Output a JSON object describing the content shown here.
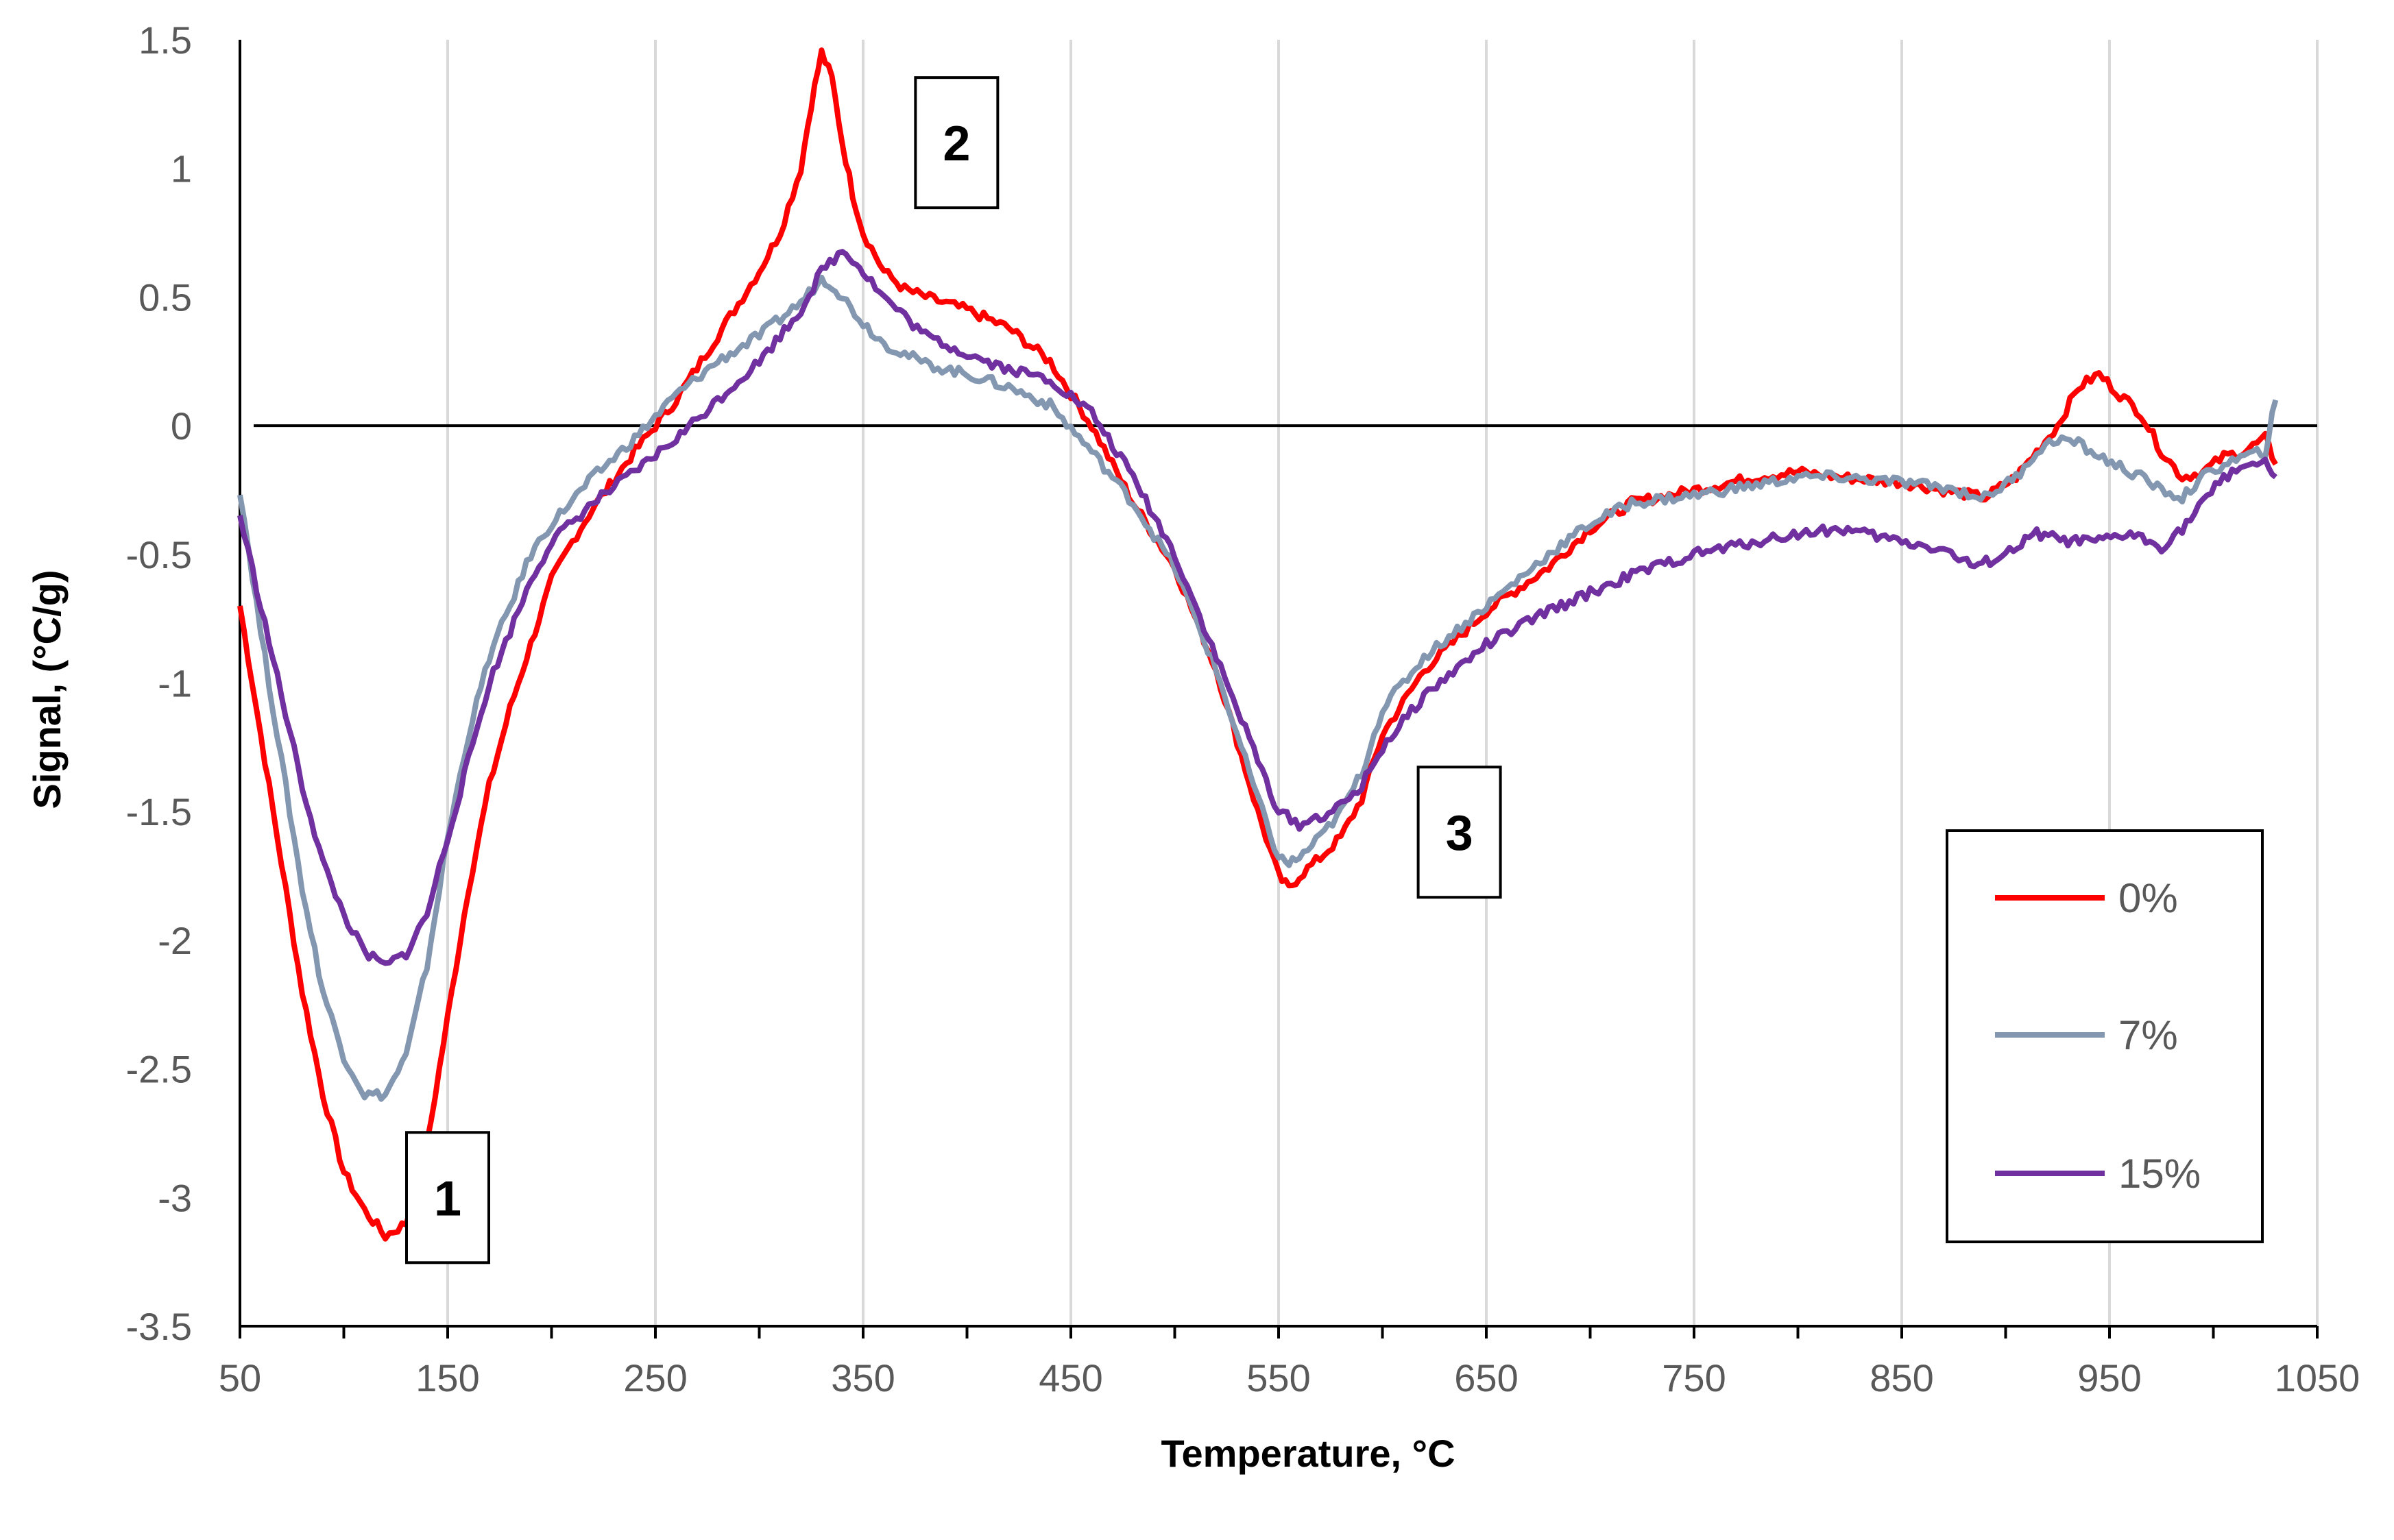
{
  "chart_data": {
    "type": "line",
    "title": "",
    "xlabel": "Temperature, °C",
    "ylabel": "Signal, (°C/g)",
    "xlim": [
      50,
      1050
    ],
    "ylim": [
      -3.5,
      1.5
    ],
    "x_ticks": [
      50,
      150,
      250,
      350,
      450,
      550,
      650,
      750,
      850,
      950,
      1050
    ],
    "x_tick_labels": [
      "50",
      "150",
      "250",
      "350",
      "450",
      "550",
      "650",
      "750",
      "850",
      "950",
      "1050"
    ],
    "y_ticks": [
      1.5,
      1,
      0.5,
      0,
      -0.5,
      -1,
      -1.5,
      -2,
      -2.5,
      -3,
      -3.5
    ],
    "y_tick_labels": [
      "1.5",
      "1",
      "0.5",
      "0",
      "-0.5",
      "-1",
      "-1.5",
      "-2",
      "-2.5",
      "-3",
      "-3.5"
    ],
    "grid": "vertical",
    "zero_line": true,
    "legend_position": "right",
    "series": [
      {
        "name": "0%",
        "color": "#ff0000",
        "x": [
          50,
          60,
          70,
          80,
          90,
          100,
          110,
          120,
          130,
          140,
          150,
          160,
          170,
          180,
          190,
          200,
          210,
          220,
          240,
          260,
          280,
          300,
          310,
          320,
          325,
          330,
          335,
          340,
          345,
          350,
          360,
          370,
          380,
          400,
          420,
          440,
          460,
          480,
          500,
          520,
          540,
          550,
          555,
          560,
          570,
          580,
          590,
          600,
          620,
          650,
          680,
          700,
          720,
          750,
          780,
          800,
          820,
          850,
          870,
          890,
          905,
          915,
          925,
          935,
          945,
          955,
          965,
          975,
          985,
          995,
          1005,
          1015,
          1025,
          1030
        ],
        "y": [
          -0.7,
          -1.2,
          -1.7,
          -2.2,
          -2.6,
          -2.9,
          -3.05,
          -3.15,
          -3.1,
          -2.8,
          -2.3,
          -1.8,
          -1.4,
          -1.1,
          -0.85,
          -0.6,
          -0.45,
          -0.32,
          -0.1,
          0.1,
          0.35,
          0.6,
          0.75,
          1.0,
          1.25,
          1.45,
          1.35,
          1.1,
          0.9,
          0.75,
          0.6,
          0.53,
          0.5,
          0.45,
          0.38,
          0.25,
          0.0,
          -0.3,
          -0.55,
          -0.95,
          -1.5,
          -1.75,
          -1.8,
          -1.75,
          -1.68,
          -1.6,
          -1.45,
          -1.2,
          -0.95,
          -0.72,
          -0.55,
          -0.4,
          -0.3,
          -0.25,
          -0.2,
          -0.18,
          -0.2,
          -0.22,
          -0.25,
          -0.28,
          -0.2,
          -0.1,
          0.0,
          0.15,
          0.2,
          0.12,
          0.05,
          -0.1,
          -0.2,
          -0.18,
          -0.12,
          -0.1,
          -0.05,
          -0.15
        ]
      },
      {
        "name": "7%",
        "color": "#8497b0",
        "x": [
          50,
          60,
          70,
          80,
          90,
          100,
          110,
          120,
          130,
          140,
          150,
          160,
          170,
          180,
          190,
          200,
          220,
          240,
          260,
          280,
          300,
          320,
          330,
          335,
          340,
          350,
          360,
          380,
          400,
          420,
          440,
          460,
          480,
          500,
          520,
          540,
          550,
          555,
          560,
          570,
          580,
          590,
          600,
          620,
          650,
          680,
          700,
          720,
          750,
          780,
          800,
          820,
          850,
          870,
          890,
          905,
          915,
          925,
          935,
          945,
          955,
          965,
          975,
          985,
          995,
          1005,
          1015,
          1025,
          1030
        ],
        "y": [
          -0.25,
          -0.8,
          -1.3,
          -1.8,
          -2.2,
          -2.45,
          -2.6,
          -2.6,
          -2.45,
          -2.1,
          -1.6,
          -1.2,
          -0.9,
          -0.7,
          -0.5,
          -0.38,
          -0.2,
          -0.05,
          0.12,
          0.25,
          0.35,
          0.48,
          0.57,
          0.55,
          0.5,
          0.4,
          0.32,
          0.24,
          0.2,
          0.15,
          0.08,
          -0.1,
          -0.3,
          -0.55,
          -0.95,
          -1.45,
          -1.68,
          -1.7,
          -1.68,
          -1.6,
          -1.5,
          -1.35,
          -1.1,
          -0.9,
          -0.7,
          -0.5,
          -0.38,
          -0.3,
          -0.27,
          -0.23,
          -0.2,
          -0.2,
          -0.22,
          -0.24,
          -0.28,
          -0.2,
          -0.1,
          -0.05,
          -0.07,
          -0.12,
          -0.16,
          -0.2,
          -0.25,
          -0.28,
          -0.2,
          -0.15,
          -0.12,
          -0.1,
          0.1
        ]
      },
      {
        "name": "15%",
        "color": "#7030a0",
        "x": [
          50,
          60,
          70,
          80,
          90,
          100,
          110,
          120,
          130,
          140,
          150,
          160,
          170,
          180,
          190,
          200,
          220,
          240,
          260,
          280,
          300,
          320,
          330,
          340,
          345,
          350,
          360,
          380,
          400,
          420,
          440,
          460,
          480,
          500,
          520,
          540,
          550,
          560,
          570,
          580,
          590,
          600,
          620,
          650,
          680,
          700,
          720,
          750,
          780,
          800,
          820,
          850,
          870,
          885,
          900,
          915,
          930,
          945,
          960,
          975,
          985,
          995,
          1005,
          1015,
          1025,
          1030
        ],
        "y": [
          -0.35,
          -0.7,
          -1.05,
          -1.4,
          -1.7,
          -1.9,
          -2.05,
          -2.1,
          -2.05,
          -1.9,
          -1.6,
          -1.3,
          -1.0,
          -0.8,
          -0.6,
          -0.45,
          -0.3,
          -0.18,
          -0.05,
          0.1,
          0.25,
          0.45,
          0.6,
          0.68,
          0.65,
          0.6,
          0.5,
          0.35,
          0.28,
          0.22,
          0.18,
          0.05,
          -0.2,
          -0.5,
          -0.9,
          -1.3,
          -1.5,
          -1.55,
          -1.52,
          -1.48,
          -1.4,
          -1.25,
          -1.05,
          -0.85,
          -0.72,
          -0.65,
          -0.58,
          -0.5,
          -0.45,
          -0.42,
          -0.4,
          -0.45,
          -0.48,
          -0.55,
          -0.5,
          -0.42,
          -0.45,
          -0.45,
          -0.42,
          -0.47,
          -0.4,
          -0.3,
          -0.2,
          -0.15,
          -0.15,
          -0.2
        ]
      }
    ],
    "annotations": [
      {
        "label": "1",
        "x": 150,
        "y": -3.0
      },
      {
        "label": "2",
        "x": 395,
        "y": 1.1
      },
      {
        "label": "3",
        "x": 637,
        "y": -1.58
      }
    ]
  }
}
